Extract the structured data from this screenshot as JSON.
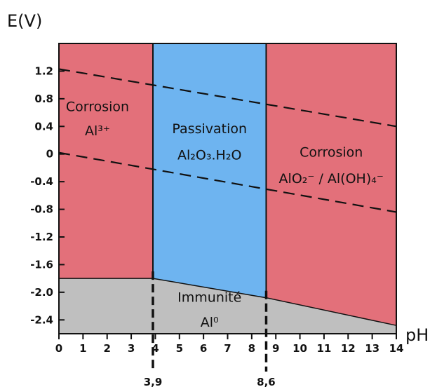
{
  "chart_data": {
    "type": "area",
    "title": "",
    "xlabel": "pH",
    "ylabel": "E(V)",
    "xlim": [
      0,
      14
    ],
    "ylim": [
      -2.6,
      1.6
    ],
    "x_ticks": [
      0,
      1,
      2,
      3,
      4,
      5,
      6,
      7,
      8,
      9,
      10,
      11,
      12,
      13,
      14
    ],
    "y_ticks": [
      1.2,
      0.8,
      0.4,
      0,
      -0.4,
      -0.8,
      -1.2,
      -1.6,
      -2.0,
      -2.4
    ],
    "x_tick_labels": [
      "0",
      "1",
      "2",
      "3",
      "4",
      "5",
      "6",
      "7",
      "8",
      "9",
      "10",
      "11",
      "12",
      "13",
      "14"
    ],
    "y_tick_labels": [
      "1.2",
      "0.8",
      "0.4",
      "0",
      "-0.4",
      "-0.8",
      "-1.2",
      "-1.6",
      "-2.0",
      "-2.4"
    ],
    "boundaries": [
      {
        "ph": 3.9,
        "label": "3,9"
      },
      {
        "ph": 8.6,
        "label": "8,6"
      }
    ],
    "immunity_line": {
      "x": [
        0,
        3.9,
        8.6,
        14
      ],
      "y": [
        -1.8,
        -1.8,
        -2.08,
        -2.48
      ]
    },
    "water_lines": [
      {
        "x": [
          0,
          14
        ],
        "y": [
          1.23,
          0.4
        ]
      },
      {
        "x": [
          0,
          14
        ],
        "y": [
          0.02,
          -0.84
        ]
      }
    ],
    "regions": [
      {
        "key": "corrosion-acid",
        "lines": [
          "Corrosion",
          "Al³⁺"
        ],
        "color": "#e3707a"
      },
      {
        "key": "passivation",
        "lines": [
          "Passivation",
          "Al₂O₃.H₂O"
        ],
        "color": "#6eb4f0"
      },
      {
        "key": "corrosion-basic",
        "lines": [
          "Corrosion",
          "AlO₂⁻ / Al(OH)₄⁻"
        ],
        "color": "#e3707a"
      },
      {
        "key": "immunity",
        "lines": [
          "Immunité",
          "Al⁰"
        ],
        "color": "#bfbfbf"
      }
    ]
  }
}
